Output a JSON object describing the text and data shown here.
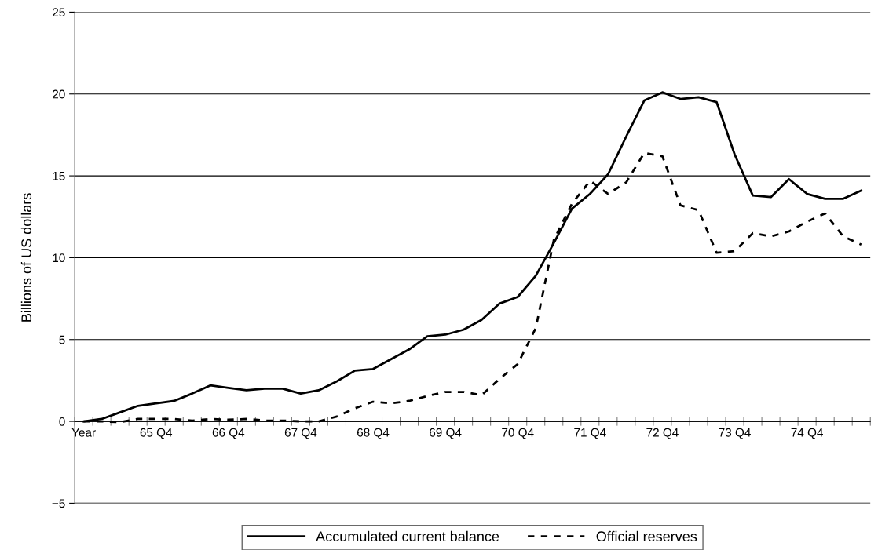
{
  "chart_data": {
    "type": "line",
    "ylabel": "Billions of US dollars",
    "categories": [
      "Year",
      null,
      null,
      null,
      "65 Q4",
      null,
      null,
      null,
      "66 Q4",
      null,
      null,
      null,
      "67 Q4",
      null,
      null,
      null,
      "68 Q4",
      null,
      null,
      null,
      "69 Q4",
      null,
      null,
      null,
      "70 Q4",
      null,
      null,
      null,
      "71 Q4",
      null,
      null,
      null,
      "72 Q4",
      null,
      null,
      null,
      "73 Q4",
      null,
      null,
      null,
      "74 Q4",
      null,
      null,
      null
    ],
    "series": [
      {
        "name": "Accumulated current balance",
        "color": "#000000",
        "line_style": "solid",
        "values": [
          0,
          0.15,
          0.55,
          0.95,
          1.1,
          1.25,
          1.7,
          2.2,
          2.05,
          1.9,
          2.0,
          2.0,
          1.7,
          1.9,
          2.45,
          3.1,
          3.2,
          3.8,
          4.4,
          5.2,
          5.3,
          5.6,
          6.2,
          7.2,
          7.6,
          8.9,
          10.9,
          13.0,
          13.9,
          15.1,
          17.4,
          19.6,
          20.1,
          19.7,
          19.8,
          19.5,
          16.3,
          13.8,
          13.7,
          14.8,
          13.9,
          13.6,
          13.6,
          14.1
        ]
      },
      {
        "name": "Official reserves",
        "color": "#000000",
        "line_style": "dashed",
        "values": [
          0,
          0,
          -0.05,
          0.15,
          0.15,
          0.15,
          0.05,
          0.15,
          0.1,
          0.15,
          0.05,
          0.05,
          0,
          0,
          0.3,
          0.8,
          1.2,
          1.1,
          1.25,
          1.55,
          1.8,
          1.8,
          1.6,
          2.6,
          3.5,
          5.7,
          11.1,
          13.3,
          14.7,
          13.9,
          14.6,
          16.4,
          16.2,
          13.2,
          12.9,
          10.3,
          10.4,
          11.5,
          11.3,
          11.6,
          12.2,
          12.7,
          11.3,
          10.8
        ]
      }
    ],
    "ylim": [
      -5,
      25
    ],
    "yticks": [
      {
        "value": -5,
        "label": "−5"
      },
      0,
      5,
      10,
      15,
      20,
      25
    ],
    "grid": "y",
    "legend": "bottom"
  }
}
